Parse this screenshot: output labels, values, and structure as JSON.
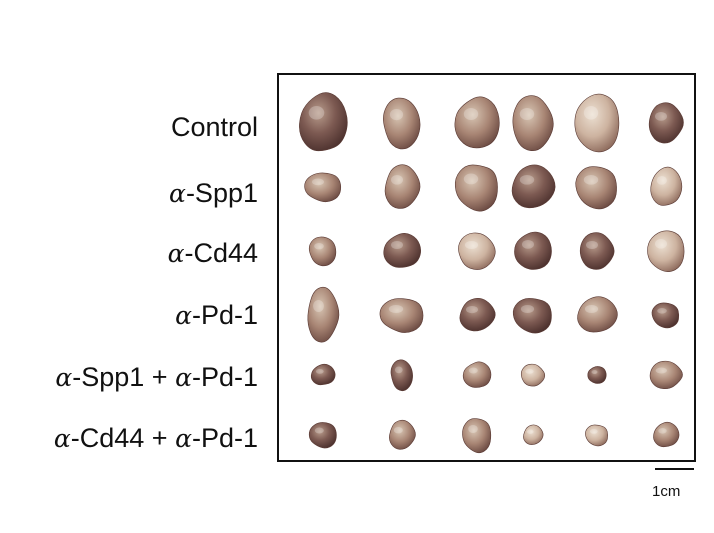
{
  "rows": [
    {
      "prefix": "",
      "label": "Control",
      "pieces": 6
    },
    {
      "prefix": "α",
      "label": "-Spp1",
      "pieces": 6
    },
    {
      "prefix": "α",
      "label": "-Cd44",
      "pieces": 6
    },
    {
      "prefix": "α",
      "label": "-Pd-1",
      "pieces": 6
    },
    {
      "prefix": "α",
      "label": "-Spp1 + ",
      "prefix2": "α",
      "label2": "-Pd-1",
      "pieces": 6
    },
    {
      "prefix": "α",
      "label": "-Cd44 + ",
      "prefix2": "α",
      "label2": "-Pd-1",
      "pieces": 6
    }
  ],
  "scale_bar": {
    "label": "1cm"
  },
  "colors": {
    "border": "#111111",
    "tumor_light": "#d9c3b0",
    "tumor_mid": "#b08d7a",
    "tumor_dark": "#6e4a42"
  }
}
